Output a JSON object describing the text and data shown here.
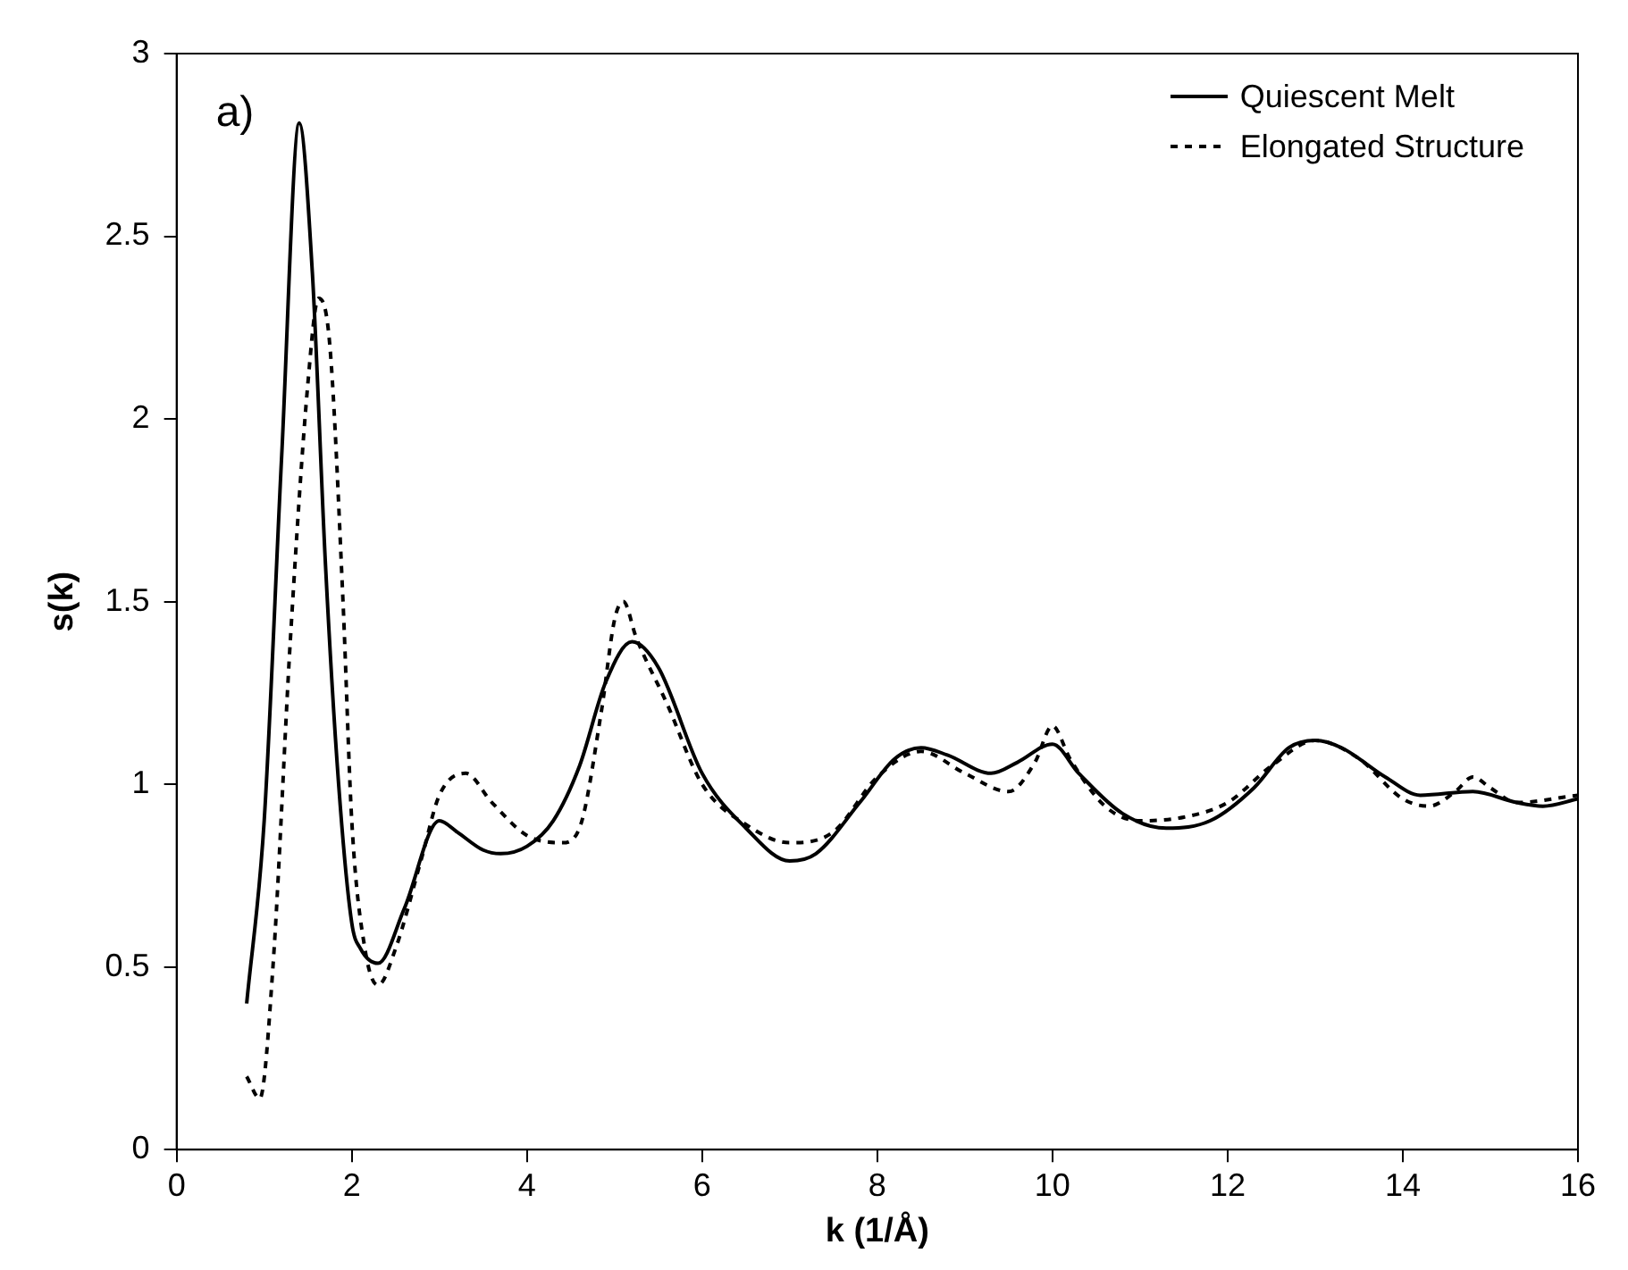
{
  "chart_data": {
    "type": "line",
    "xlabel": "k (1/Å)",
    "ylabel": "s(k)",
    "xlim": [
      0,
      16
    ],
    "xticks": [
      0,
      2,
      4,
      6,
      8,
      10,
      12,
      14,
      16
    ],
    "ylim": [
      0,
      3
    ],
    "yticks": [
      0,
      0.5,
      1,
      1.5,
      2,
      2.5,
      3
    ],
    "grid": false,
    "legend": "top right",
    "marker": "none",
    "annotations": [
      "a)"
    ],
    "series": [
      {
        "name": "Quiescent Melt",
        "color": "#000000",
        "line_style": "solid",
        "x": [
          0.8,
          1.0,
          1.2,
          1.4,
          1.55,
          1.7,
          1.85,
          2.0,
          2.1,
          2.3,
          2.6,
          3.0,
          3.2,
          3.5,
          3.7,
          4.0,
          4.3,
          4.6,
          4.9,
          5.2,
          5.5,
          6.0,
          6.5,
          7.0,
          7.3,
          7.8,
          8.2,
          8.5,
          8.8,
          9.3,
          9.6,
          10.0,
          10.3,
          10.8,
          11.3,
          11.8,
          12.3,
          12.7,
          13.0,
          13.3,
          13.8,
          14.2,
          14.8,
          15.3,
          15.6,
          16.0
        ],
        "values": [
          0.4,
          0.9,
          1.9,
          2.81,
          2.4,
          1.6,
          1.0,
          0.62,
          0.55,
          0.51,
          0.66,
          0.9,
          0.87,
          0.82,
          0.81,
          0.83,
          0.9,
          1.05,
          1.28,
          1.39,
          1.32,
          1.03,
          0.88,
          0.79,
          0.81,
          0.95,
          1.07,
          1.1,
          1.08,
          1.03,
          1.06,
          1.11,
          1.03,
          0.92,
          0.88,
          0.9,
          0.99,
          1.1,
          1.12,
          1.1,
          1.02,
          0.97,
          0.98,
          0.95,
          0.94,
          0.96
        ]
      },
      {
        "name": "Elongated Structure",
        "color": "#000000",
        "line_style": "dotted",
        "x": [
          0.8,
          0.95,
          1.1,
          1.3,
          1.5,
          1.62,
          1.75,
          1.9,
          2.0,
          2.15,
          2.3,
          2.5,
          2.8,
          3.0,
          3.3,
          3.6,
          4.0,
          4.4,
          4.6,
          4.85,
          5.0,
          5.1,
          5.25,
          5.6,
          6.0,
          6.5,
          7.0,
          7.5,
          8.0,
          8.5,
          9.0,
          9.5,
          9.8,
          10.0,
          10.2,
          10.6,
          11.0,
          11.5,
          12.0,
          12.5,
          13.0,
          13.5,
          14.0,
          14.3,
          14.6,
          14.8,
          15.0,
          15.3,
          16.0
        ],
        "values": [
          0.2,
          0.14,
          0.5,
          1.4,
          2.1,
          2.33,
          2.2,
          1.5,
          0.9,
          0.55,
          0.45,
          0.55,
          0.8,
          0.97,
          1.03,
          0.95,
          0.86,
          0.84,
          0.88,
          1.2,
          1.45,
          1.5,
          1.4,
          1.22,
          1.0,
          0.89,
          0.84,
          0.87,
          1.02,
          1.09,
          1.03,
          0.98,
          1.06,
          1.16,
          1.07,
          0.94,
          0.9,
          0.91,
          0.95,
          1.05,
          1.12,
          1.07,
          0.96,
          0.94,
          0.98,
          1.02,
          0.99,
          0.95,
          0.97
        ]
      }
    ]
  }
}
